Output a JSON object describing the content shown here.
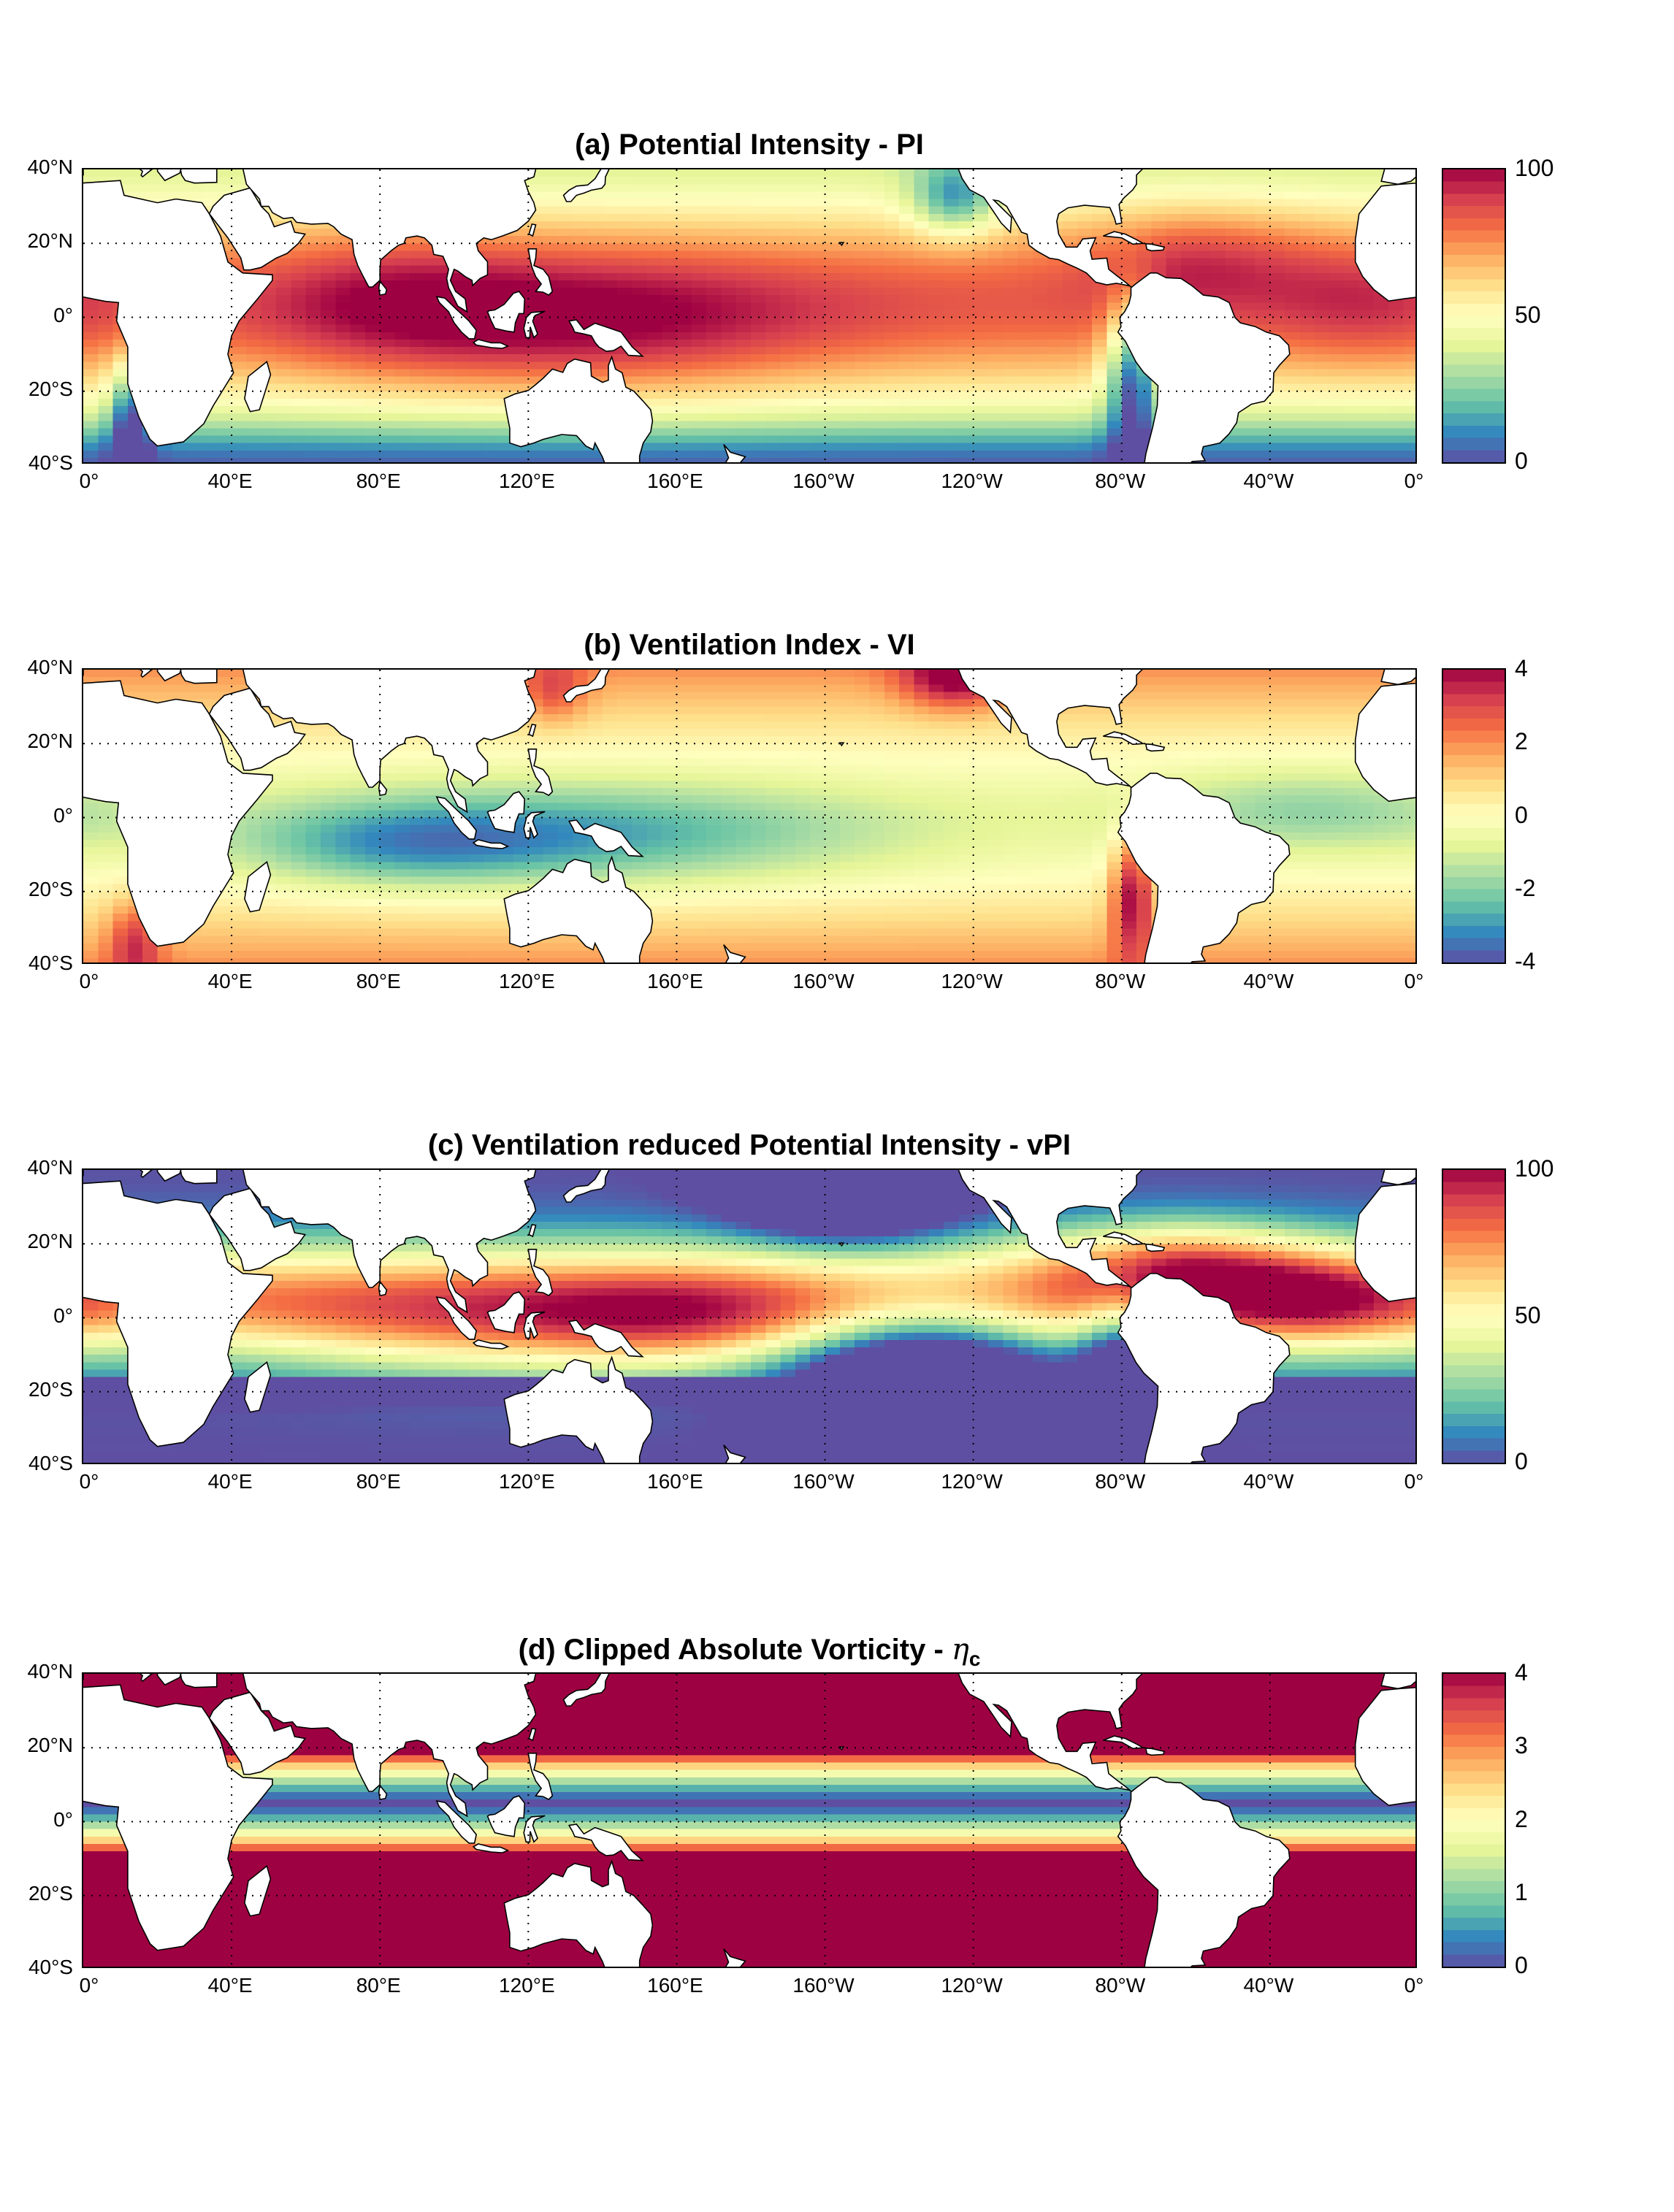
{
  "panels": [
    {
      "title": "(a) Potential Intensity - PI",
      "colorbar": {
        "min": 0,
        "max": 100,
        "ticks": [
          "100",
          "50",
          "0"
        ],
        "tick_values": [
          100,
          50,
          0
        ]
      },
      "field": "pi"
    },
    {
      "title": "(b) Ventilation Index - VI",
      "colorbar": {
        "min": -4,
        "max": 4,
        "ticks": [
          "4",
          "2",
          "0",
          "-2",
          "-4"
        ],
        "tick_values": [
          4,
          2,
          0,
          -2,
          -4
        ]
      },
      "field": "vi"
    },
    {
      "title": "(c) Ventilation reduced Potential Intensity - vPI",
      "colorbar": {
        "min": 0,
        "max": 100,
        "ticks": [
          "100",
          "50",
          "0"
        ],
        "tick_values": [
          100,
          50,
          0
        ]
      },
      "field": "vpi"
    },
    {
      "title": "(d) Clipped Absolute Vorticity - ",
      "title_symbol": "η",
      "title_subscript": "c",
      "colorbar": {
        "min": 0,
        "max": 4,
        "ticks": [
          "4",
          "3",
          "2",
          "1",
          "0"
        ],
        "tick_values": [
          4,
          3,
          2,
          1,
          0
        ]
      },
      "field": "eta"
    }
  ],
  "axes": {
    "lat_labels": [
      "40°N",
      "20°N",
      "0°",
      "20°S",
      "40°S"
    ],
    "lat_values": [
      40,
      20,
      0,
      -20,
      -40
    ],
    "lon_labels": [
      "0°",
      "40°E",
      "80°E",
      "120°E",
      "160°E",
      "160°W",
      "120°W",
      "80°W",
      "40°W",
      "0°"
    ],
    "lon_values": [
      0,
      40,
      80,
      120,
      160,
      200,
      240,
      280,
      320,
      360
    ],
    "lat_range": [
      -40,
      40
    ],
    "lon_range": [
      0,
      360
    ],
    "grid": "dotted"
  },
  "colormap": [
    "#5e4fa2",
    "#3288bd",
    "#66c2a5",
    "#abdda4",
    "#e6f598",
    "#ffffbf",
    "#fee08b",
    "#fdae61",
    "#f46d43",
    "#d53e4f",
    "#9e0142"
  ],
  "land_color": "#ffffff",
  "coastline_color": "#000000"
}
